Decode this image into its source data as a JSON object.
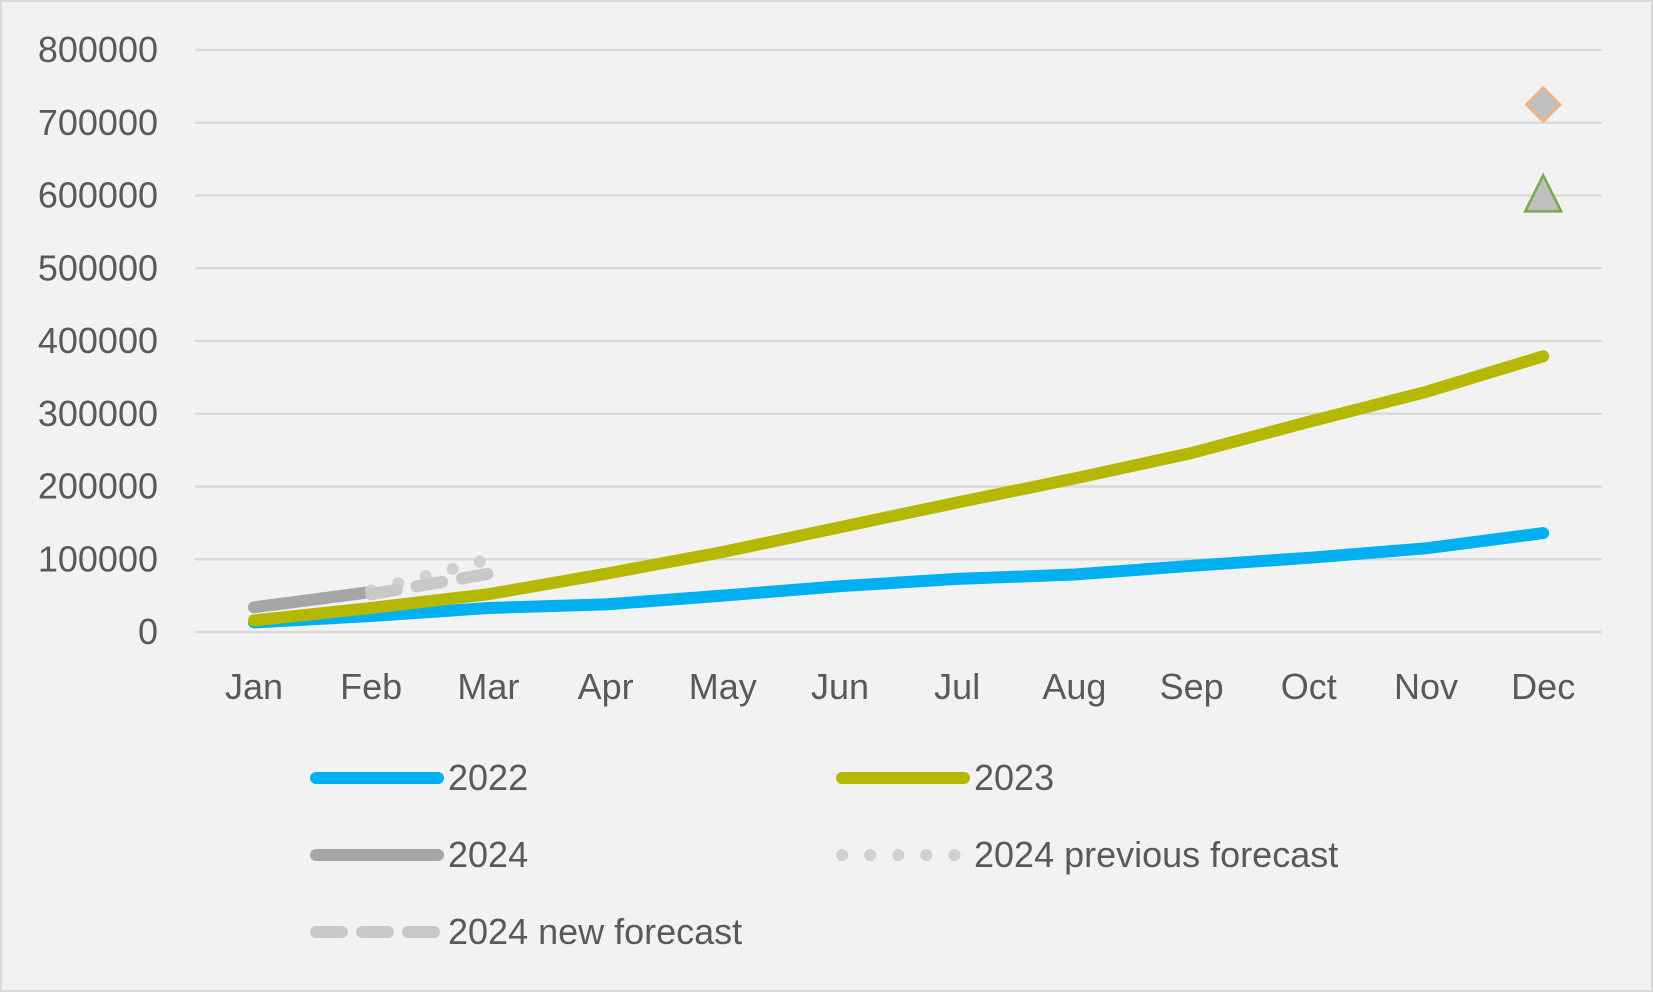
{
  "chart_data": {
    "type": "line",
    "title": "",
    "xlabel": "",
    "ylabel": "",
    "ylim": [
      0,
      800000
    ],
    "y_ticks": [
      "0",
      "100000",
      "200000",
      "300000",
      "400000",
      "500000",
      "600000",
      "700000",
      "800000"
    ],
    "categories": [
      "Jan",
      "Feb",
      "Mar",
      "Apr",
      "May",
      "Jun",
      "Jul",
      "Aug",
      "Sep",
      "Oct",
      "Nov",
      "Dec"
    ],
    "grid": true,
    "legend_position": "bottom",
    "series": [
      {
        "name": "2022",
        "color": "#00b0f0",
        "style": "solid",
        "values": [
          13000,
          22000,
          33000,
          38000,
          50000,
          63000,
          73000,
          79000,
          91000,
          102000,
          115000,
          136000
        ]
      },
      {
        "name": "2023",
        "color": "#b5b800",
        "style": "solid",
        "values": [
          16000,
          33000,
          52000,
          80000,
          110000,
          144000,
          178000,
          211000,
          246000,
          289000,
          330000,
          379000
        ]
      },
      {
        "name": "2024",
        "color": "#a6a6a6",
        "style": "solid",
        "values": [
          34000,
          55000,
          null,
          null,
          null,
          null,
          null,
          null,
          null,
          null,
          null,
          null
        ]
      },
      {
        "name": "2024 previous forecast",
        "color": "#d0d0d0",
        "style": "dotted",
        "values": [
          null,
          57000,
          100000,
          null,
          null,
          null,
          null,
          null,
          null,
          null,
          null,
          null
        ]
      },
      {
        "name": "2024 new forecast",
        "color": "#c8c8c8",
        "style": "dashed",
        "values": [
          null,
          52000,
          80000,
          null,
          null,
          null,
          null,
          null,
          null,
          null,
          null,
          null
        ]
      }
    ],
    "markers": [
      {
        "name": "Dec diamond target",
        "category": "Dec",
        "value": 725000,
        "shape": "diamond",
        "fill": "#bfbfbf",
        "stroke": "#f4b183"
      },
      {
        "name": "Dec triangle target",
        "category": "Dec",
        "value": 603000,
        "shape": "triangle",
        "fill": "#bfbfbf",
        "stroke": "#70ad47"
      }
    ]
  }
}
